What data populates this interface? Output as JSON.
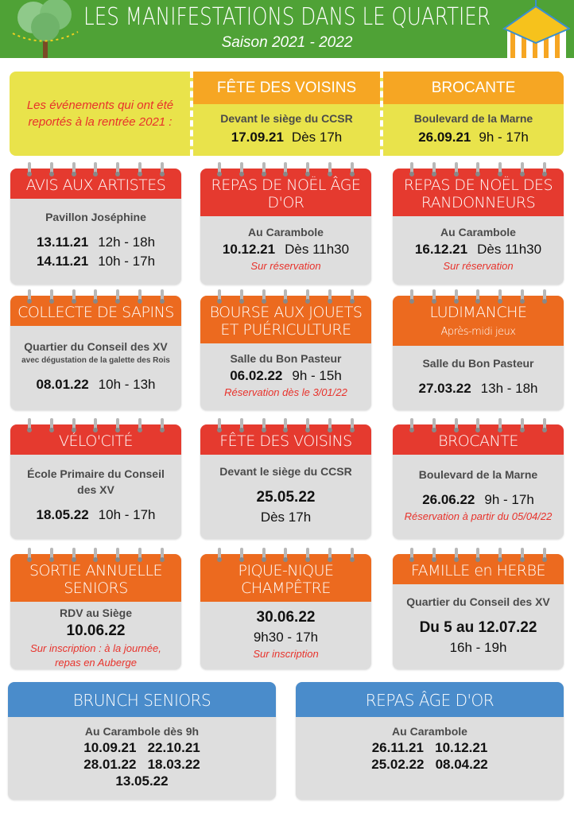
{
  "header": {
    "title": "LES MANIFESTATIONS DANS LE QUARTIER",
    "subtitle": "Saison 2021 - 2022"
  },
  "reported": {
    "intro": "Les événements qui ont été reportés à la rentrée 2021 :",
    "events": [
      {
        "title": "FÊTE DES VOISINS",
        "place": "Devant le siège du CCSR",
        "date": "17.09.21",
        "time": "Dès 17h"
      },
      {
        "title": "BROCANTE",
        "place": "Boulevard de la Marne",
        "date": "26.09.21",
        "time": "9h - 17h"
      }
    ]
  },
  "cards": [
    {
      "title": "AVIS AUX ARTISTES",
      "color": "red",
      "lines": [
        {
          "k": "place",
          "t": "Pavillon Joséphine"
        },
        {
          "k": "gap"
        },
        {
          "k": "dt",
          "d": "13.11.21",
          "t": "12h - 18h"
        },
        {
          "k": "dt",
          "d": "14.11.21",
          "t": "10h - 17h"
        }
      ]
    },
    {
      "title": "REPAS DE NOËL ÂGE D'OR",
      "color": "red",
      "lines": [
        {
          "k": "place",
          "t": "Au Carambole"
        },
        {
          "k": "dt",
          "d": "10.12.21",
          "t": "Dès 11h30"
        },
        {
          "k": "note",
          "t": "Sur réservation"
        }
      ]
    },
    {
      "title": "REPAS DE NOËL DES RANDONNEURS",
      "color": "red",
      "lines": [
        {
          "k": "place",
          "t": "Au Carambole"
        },
        {
          "k": "dt",
          "d": "16.12.21",
          "t": "Dès 11h30"
        },
        {
          "k": "note",
          "t": "Sur réservation"
        }
      ]
    },
    {
      "title": "COLLECTE DE SAPINS",
      "color": "orange",
      "lines": [
        {
          "k": "place",
          "t": "Quartier du Conseil des XV"
        },
        {
          "k": "small",
          "t": "avec dégustation de la galette des Rois"
        },
        {
          "k": "gap"
        },
        {
          "k": "dt",
          "d": "08.01.22",
          "t": "10h - 13h"
        }
      ]
    },
    {
      "title": "BOURSE AUX JOUETS ET PUÉRICULTURE",
      "color": "orange",
      "lines": [
        {
          "k": "place",
          "t": "Salle du Bon Pasteur"
        },
        {
          "k": "dt",
          "d": "06.02.22",
          "t": "9h - 15h"
        },
        {
          "k": "note",
          "t": "Réservation dès le 3/01/22"
        }
      ]
    },
    {
      "title": "LUDIMANCHE",
      "subtitle": "Après-midi jeux",
      "color": "orange",
      "lines": [
        {
          "k": "place",
          "t": "Salle du Bon Pasteur"
        },
        {
          "k": "gap"
        },
        {
          "k": "dt",
          "d": "27.03.22",
          "t": "13h - 18h"
        }
      ]
    },
    {
      "title": "VÉLO'CITÉ",
      "color": "red",
      "lines": [
        {
          "k": "place",
          "t": "École Primaire du Conseil des XV"
        },
        {
          "k": "gap"
        },
        {
          "k": "dt",
          "d": "18.05.22",
          "t": "10h - 17h"
        }
      ]
    },
    {
      "title": "FÊTE DES VOISINS",
      "color": "red",
      "lines": [
        {
          "k": "place",
          "t": "Devant le siège du CCSR"
        },
        {
          "k": "gap"
        },
        {
          "k": "date",
          "t": "25.05.22"
        },
        {
          "k": "time",
          "t": "Dès 17h"
        }
      ]
    },
    {
      "title": "BROCANTE",
      "color": "red",
      "lines": [
        {
          "k": "place",
          "t": "Boulevard de la Marne"
        },
        {
          "k": "gap"
        },
        {
          "k": "dt",
          "d": "26.06.22",
          "t": "9h - 17h"
        },
        {
          "k": "note",
          "t": "Réservation à partir du 05/04/22"
        }
      ]
    },
    {
      "title": "SORTIE ANNUELLE SENIORS",
      "color": "orange",
      "lines": [
        {
          "k": "place",
          "t": "RDV au Siège"
        },
        {
          "k": "date",
          "t": "10.06.22"
        },
        {
          "k": "note",
          "t": "Sur inscription : à la journée, repas en Auberge"
        }
      ]
    },
    {
      "title": "PIQUE-NIQUE CHAMPÊTRE",
      "color": "orange",
      "lines": [
        {
          "k": "date",
          "t": "30.06.22"
        },
        {
          "k": "time",
          "t": "9h30 - 17h"
        },
        {
          "k": "note",
          "t": "Sur inscription"
        }
      ]
    },
    {
      "title": "FAMILLE en HERBE",
      "color": "orange",
      "lines": [
        {
          "k": "place",
          "t": "Quartier du Conseil des XV"
        },
        {
          "k": "gap"
        },
        {
          "k": "date",
          "t": "Du 5 au 12.07.22"
        },
        {
          "k": "time",
          "t": "16h - 19h"
        }
      ]
    }
  ],
  "bottom": [
    {
      "title": "BRUNCH SENIORS",
      "place": "Au Carambole dès 9h",
      "rows": [
        "10.09.21   22.10.21",
        "28.01.22   18.03.22",
        "13.05.22"
      ]
    },
    {
      "title": "REPAS ÂGE D'OR",
      "place": "Au Carambole",
      "rows": [
        "26.11.21   10.12.21",
        "25.02.22   08.04.22"
      ]
    }
  ],
  "colors": {
    "banner": "#4fa236",
    "yellow": "#e9e34b",
    "light_orange": "#f6a623",
    "red": "#e53a2f",
    "orange": "#ec6a1f",
    "blue": "#4a8ccb",
    "note": "#e8322b",
    "card": "#dedede"
  }
}
